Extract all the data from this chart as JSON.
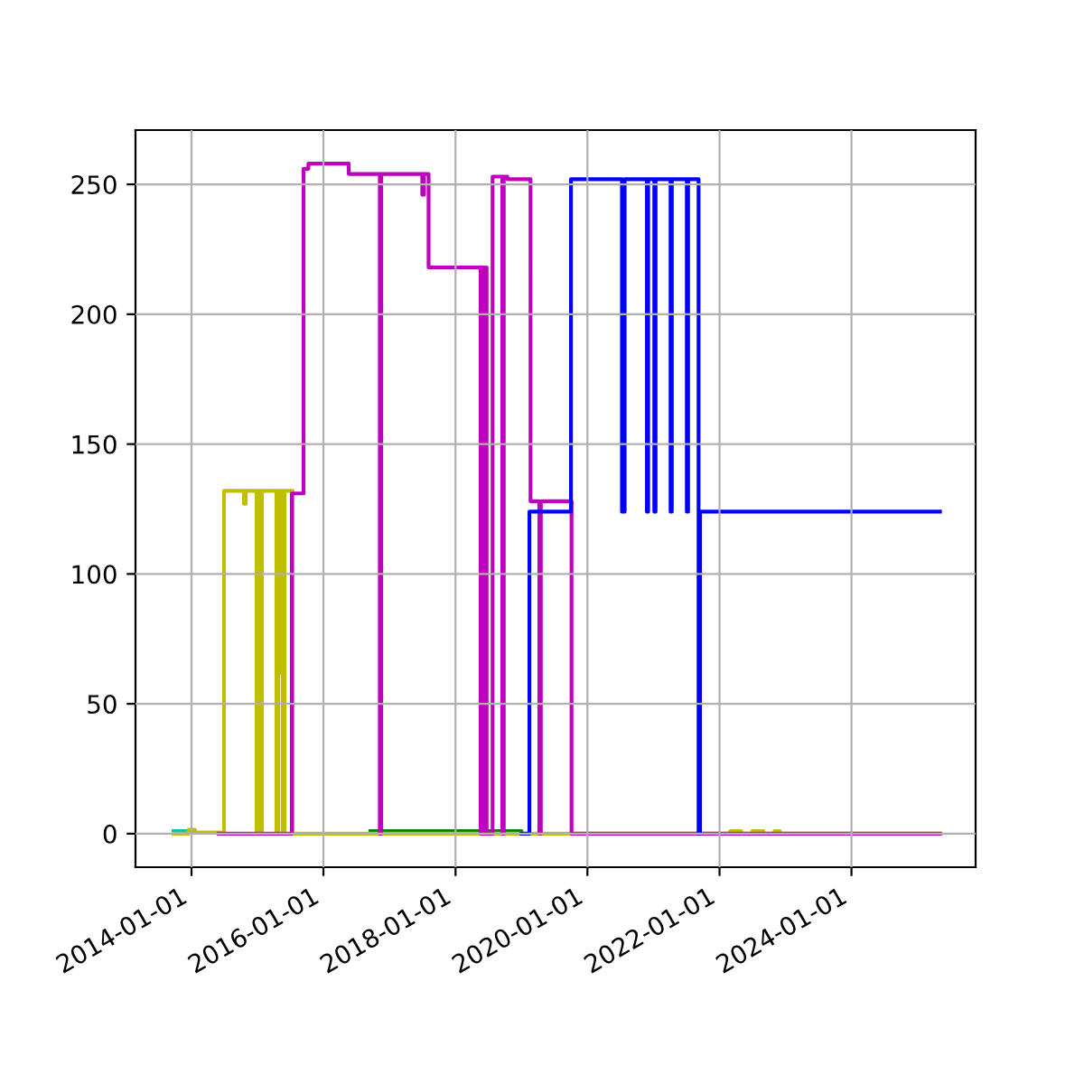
{
  "chart_data": {
    "type": "step",
    "xlim": [
      "2013-02-25",
      "2025-11-18"
    ],
    "ylim": [
      -12.9,
      270.9
    ],
    "xticks": [
      "2014-01-01",
      "2016-01-01",
      "2018-01-01",
      "2020-01-01",
      "2022-01-01",
      "2024-01-01"
    ],
    "yticks": [
      0,
      50,
      100,
      150,
      200,
      250
    ],
    "grid": true,
    "series": [
      {
        "color": "#00bfbf",
        "x": [
          "2013-09-23",
          "2014-01-10"
        ],
        "values": [
          1,
          1
        ]
      },
      {
        "color": "#008000",
        "x": [
          "2016-09-17",
          "2018-11-22",
          "2019-01-01"
        ],
        "values": [
          1,
          1,
          0
        ]
      },
      {
        "color": "#bfbf00",
        "x": [
          "2013-09-23",
          "2013-12-15",
          "2014-01-20",
          "2014-06-30",
          "2014-10-18",
          "2014-10-28",
          "2014-12-27",
          "2015-01-08",
          "2015-01-16",
          "2015-01-26",
          "2015-04-16",
          "2015-04-26",
          "2015-05-11",
          "2015-05-18",
          "2015-05-21",
          "2015-05-31",
          "2015-07-15",
          "2022-03-01",
          "2022-05-01",
          "2022-07-01",
          "2022-09-01",
          "2022-11-01",
          "2022-12-01",
          "2025-05-05"
        ],
        "values": [
          0,
          1.5,
          0.5,
          132,
          127,
          132,
          0,
          132,
          0,
          132,
          0,
          132,
          62,
          132,
          0,
          132,
          0,
          1,
          0,
          1,
          0,
          1,
          0,
          0
        ]
      },
      {
        "color": "#bf00bf",
        "x": [
          "2014-06-01",
          "2015-07-10",
          "2015-09-13",
          "2015-10-10",
          "2016-05-20",
          "2016-11-08",
          "2016-11-16",
          "2017-07-01",
          "2017-07-10",
          "2017-08-05",
          "2018-05-20",
          "2018-05-30",
          "2018-06-08",
          "2018-06-15",
          "2018-06-22",
          "2018-07-25",
          "2018-09-17",
          "2018-09-25",
          "2018-10-15",
          "2019-02-20",
          "2019-04-10",
          "2019-04-18",
          "2019-10-05",
          "2025-05-05"
        ],
        "values": [
          0,
          131,
          256,
          258,
          254,
          0,
          254,
          246,
          254,
          218,
          0,
          218,
          0,
          218,
          0,
          253,
          0,
          253,
          252,
          128,
          0,
          128,
          0,
          0
        ]
      },
      {
        "color": "#0000ff",
        "x": [
          "2019-01-01",
          "2019-02-14",
          "2019-10-02",
          "2020-07-10",
          "2020-07-25",
          "2020-11-25",
          "2020-12-02",
          "2021-01-05",
          "2021-01-12",
          "2021-04-05",
          "2021-04-12",
          "2021-07-04",
          "2021-07-11",
          "2021-09-07",
          "2021-09-15",
          "2025-05-05"
        ],
        "values": [
          0,
          124,
          252,
          124,
          252,
          124,
          252,
          124,
          252,
          124,
          252,
          124,
          252,
          0,
          124,
          124
        ]
      }
    ]
  }
}
